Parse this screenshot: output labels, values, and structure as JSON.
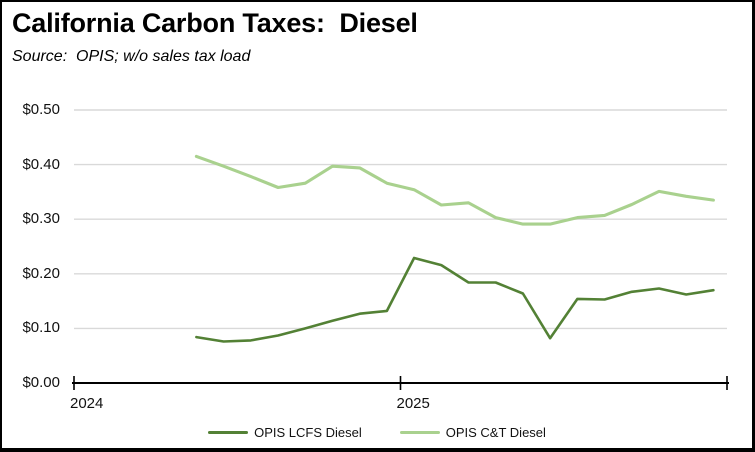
{
  "chart_data": {
    "type": "line",
    "title": "California Carbon Taxes:  Diesel",
    "source_note": "Source:  OPIS; w/o sales tax load",
    "ylabel": "",
    "xlabel": "",
    "ylim": [
      0,
      0.5
    ],
    "ytick_step": 0.1,
    "grid": "horizontal",
    "legend_position": "bottom-center",
    "x_range_months": 24,
    "x_axis_start_year": "2024",
    "colors": {
      "gridline": "#D9D9D9",
      "axis": "#000000",
      "lcfs_green": "#538135",
      "ct_green": "#A9D18E"
    },
    "yticks": [
      {
        "label": "$0.00",
        "value": 0.0
      },
      {
        "label": "$0.10",
        "value": 0.1
      },
      {
        "label": "$0.20",
        "value": 0.2
      },
      {
        "label": "$0.30",
        "value": 0.3
      },
      {
        "label": "$0.40",
        "value": 0.4
      },
      {
        "label": "$0.50",
        "value": 0.5
      }
    ],
    "xticks": [
      {
        "label": "2024",
        "month_index": 0
      },
      {
        "label": "2025",
        "month_index": 12
      }
    ],
    "series": [
      {
        "id": "lcfs",
        "name": "OPIS LCFS Diesel",
        "color": "#538135",
        "stroke_width": 2.6,
        "start_month_index": 4,
        "x": [
          "2024-05",
          "2024-06",
          "2024-07",
          "2024-08",
          "2024-09",
          "2024-10",
          "2024-11",
          "2024-12",
          "2025-01",
          "2025-02",
          "2025-03",
          "2025-04",
          "2025-05",
          "2025-06",
          "2025-07",
          "2025-08",
          "2025-09",
          "2025-10",
          "2025-11",
          "2025-12"
        ],
        "values": [
          0.084,
          0.076,
          0.078,
          0.087,
          0.1,
          0.114,
          0.127,
          0.132,
          0.229,
          0.216,
          0.184,
          0.184,
          0.164,
          0.082,
          0.154,
          0.153,
          0.167,
          0.173,
          0.162,
          0.17
        ]
      },
      {
        "id": "ct",
        "name": "OPIS C&T Diesel",
        "color": "#A9D18E",
        "stroke_width": 3.1,
        "start_month_index": 4,
        "x": [
          "2024-05",
          "2024-06",
          "2024-07",
          "2024-08",
          "2024-09",
          "2024-10",
          "2024-11",
          "2024-12",
          "2025-01",
          "2025-02",
          "2025-03",
          "2025-04",
          "2025-05",
          "2025-06",
          "2025-07",
          "2025-08",
          "2025-09",
          "2025-10",
          "2025-11",
          "2025-12"
        ],
        "values": [
          0.415,
          0.397,
          0.378,
          0.358,
          0.366,
          0.397,
          0.394,
          0.366,
          0.354,
          0.326,
          0.33,
          0.303,
          0.291,
          0.291,
          0.303,
          0.307,
          0.327,
          0.351,
          0.342,
          0.335
        ]
      }
    ]
  }
}
